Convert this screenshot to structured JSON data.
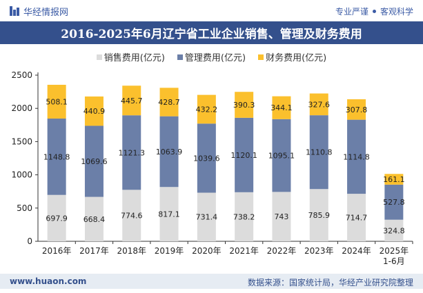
{
  "brand": {
    "name": "华经情报网"
  },
  "header_tags": [
    "专业严谨",
    "客观科学"
  ],
  "colors": {
    "title_bg": "#34508c",
    "sales": "#dcdcdc",
    "mgmt": "#6b7fa8",
    "finance": "#fbc02d"
  },
  "chart_data": {
    "type": "bar",
    "stacked": true,
    "title": "2016-2025年6月辽宁省工业企业销售、管理及财务费用",
    "categories": [
      "2016年",
      "2017年",
      "2018年",
      "2019年",
      "2020年",
      "2021年",
      "2022年",
      "2023年",
      "2024年",
      "2025年\n1-6月"
    ],
    "series": [
      {
        "name": "销售费用(亿元)",
        "color": "#dcdcdc",
        "values": [
          697.9,
          668.4,
          774.6,
          817.1,
          731.4,
          738.2,
          743,
          785.9,
          714.7,
          324.8
        ]
      },
      {
        "name": "管理费用(亿元)",
        "color": "#6b7fa8",
        "values": [
          1148.8,
          1069.6,
          1121.3,
          1063.9,
          1039.6,
          1120.1,
          1095.1,
          1110.8,
          1114.8,
          527.8
        ]
      },
      {
        "name": "财务费用(亿元)",
        "color": "#fbc02d",
        "values": [
          508.1,
          440.9,
          445.7,
          428.7,
          432.2,
          390.3,
          344.1,
          327.6,
          307.8,
          161.1
        ]
      }
    ],
    "yticks": [
      0,
      500,
      1000,
      1500,
      2000,
      2500
    ],
    "ylim": [
      0,
      2500
    ],
    "xlabel": "",
    "ylabel": "",
    "legend": "top-center"
  },
  "footer": {
    "url": "www.huaon.com",
    "source": "数据来源：国家统计局，华经产业研究院整理"
  }
}
